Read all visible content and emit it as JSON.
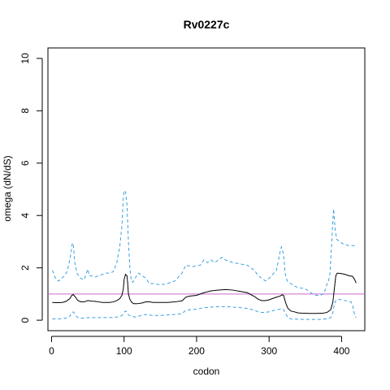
{
  "chart_data": {
    "type": "line",
    "title": "Rv0227c",
    "xlabel": "codon",
    "ylabel": "omega (dN/dS)",
    "xlim": [
      -5,
      432
    ],
    "ylim": [
      -0.4,
      10.4
    ],
    "xticks": [
      0,
      100,
      200,
      300,
      400
    ],
    "yticks": [
      0,
      2,
      4,
      6,
      8,
      10
    ],
    "grid": false,
    "reference_line": {
      "y": 1,
      "color": "#cc66cc"
    },
    "series": [
      {
        "role": "estimate",
        "color": "#000000",
        "dash": "solid",
        "points": [
          [
            1,
            0.68
          ],
          [
            5,
            0.67
          ],
          [
            10,
            0.67
          ],
          [
            15,
            0.68
          ],
          [
            20,
            0.72
          ],
          [
            25,
            0.82
          ],
          [
            28,
            0.95
          ],
          [
            30,
            0.98
          ],
          [
            33,
            0.88
          ],
          [
            36,
            0.76
          ],
          [
            40,
            0.7
          ],
          [
            45,
            0.7
          ],
          [
            50,
            0.75
          ],
          [
            55,
            0.73
          ],
          [
            60,
            0.72
          ],
          [
            65,
            0.7
          ],
          [
            70,
            0.68
          ],
          [
            75,
            0.68
          ],
          [
            80,
            0.68
          ],
          [
            85,
            0.7
          ],
          [
            90,
            0.75
          ],
          [
            94,
            0.82
          ],
          [
            97,
            0.95
          ],
          [
            99,
            1.2
          ],
          [
            100,
            1.55
          ],
          [
            102,
            1.75
          ],
          [
            104,
            1.7
          ],
          [
            105,
            1.4
          ],
          [
            106,
            1.0
          ],
          [
            108,
            0.8
          ],
          [
            110,
            0.7
          ],
          [
            113,
            0.63
          ],
          [
            118,
            0.63
          ],
          [
            125,
            0.66
          ],
          [
            130,
            0.7
          ],
          [
            135,
            0.7
          ],
          [
            140,
            0.68
          ],
          [
            150,
            0.68
          ],
          [
            160,
            0.68
          ],
          [
            170,
            0.7
          ],
          [
            180,
            0.74
          ],
          [
            185,
            0.88
          ],
          [
            190,
            0.92
          ],
          [
            200,
            0.95
          ],
          [
            210,
            1.05
          ],
          [
            220,
            1.12
          ],
          [
            230,
            1.15
          ],
          [
            240,
            1.17
          ],
          [
            250,
            1.15
          ],
          [
            260,
            1.1
          ],
          [
            270,
            1.05
          ],
          [
            280,
            0.9
          ],
          [
            285,
            0.8
          ],
          [
            290,
            0.75
          ],
          [
            295,
            0.75
          ],
          [
            300,
            0.78
          ],
          [
            305,
            0.83
          ],
          [
            310,
            0.88
          ],
          [
            315,
            0.92
          ],
          [
            318,
            0.97
          ],
          [
            320,
            0.95
          ],
          [
            323,
            0.65
          ],
          [
            326,
            0.45
          ],
          [
            330,
            0.35
          ],
          [
            335,
            0.32
          ],
          [
            340,
            0.28
          ],
          [
            345,
            0.27
          ],
          [
            355,
            0.26
          ],
          [
            365,
            0.26
          ],
          [
            375,
            0.27
          ],
          [
            380,
            0.3
          ],
          [
            385,
            0.4
          ],
          [
            388,
            0.7
          ],
          [
            390,
            1.2
          ],
          [
            392,
            1.7
          ],
          [
            394,
            1.8
          ],
          [
            400,
            1.78
          ],
          [
            405,
            1.75
          ],
          [
            410,
            1.7
          ],
          [
            415,
            1.68
          ],
          [
            418,
            1.55
          ],
          [
            420,
            1.42
          ]
        ]
      },
      {
        "role": "upper-bound",
        "color": "#3aa0e0",
        "dash": "dashed",
        "points": [
          [
            1,
            1.9
          ],
          [
            3,
            1.8
          ],
          [
            6,
            1.55
          ],
          [
            10,
            1.5
          ],
          [
            14,
            1.6
          ],
          [
            18,
            1.7
          ],
          [
            22,
            1.9
          ],
          [
            25,
            2.3
          ],
          [
            27,
            2.6
          ],
          [
            28,
            2.85
          ],
          [
            29,
            2.95
          ],
          [
            30,
            2.9
          ],
          [
            32,
            2.2
          ],
          [
            35,
            1.8
          ],
          [
            40,
            1.6
          ],
          [
            45,
            1.55
          ],
          [
            48,
            1.8
          ],
          [
            50,
            1.95
          ],
          [
            52,
            1.7
          ],
          [
            55,
            1.7
          ],
          [
            60,
            1.65
          ],
          [
            65,
            1.7
          ],
          [
            70,
            1.75
          ],
          [
            75,
            1.8
          ],
          [
            80,
            1.8
          ],
          [
            85,
            1.85
          ],
          [
            90,
            2.2
          ],
          [
            94,
            2.8
          ],
          [
            97,
            3.6
          ],
          [
            99,
            4.7
          ],
          [
            100,
            4.95
          ],
          [
            102,
            4.9
          ],
          [
            104,
            4.4
          ],
          [
            106,
            3.0
          ],
          [
            108,
            2.0
          ],
          [
            110,
            1.5
          ],
          [
            112,
            1.45
          ],
          [
            115,
            1.6
          ],
          [
            120,
            1.8
          ],
          [
            125,
            1.7
          ],
          [
            130,
            1.6
          ],
          [
            135,
            1.4
          ],
          [
            140,
            1.4
          ],
          [
            150,
            1.35
          ],
          [
            160,
            1.4
          ],
          [
            170,
            1.5
          ],
          [
            180,
            1.8
          ],
          [
            185,
            2.1
          ],
          [
            195,
            2.05
          ],
          [
            205,
            2.1
          ],
          [
            210,
            2.3
          ],
          [
            215,
            2.2
          ],
          [
            220,
            2.3
          ],
          [
            225,
            2.2
          ],
          [
            230,
            2.3
          ],
          [
            235,
            2.4
          ],
          [
            240,
            2.3
          ],
          [
            250,
            2.2
          ],
          [
            260,
            2.15
          ],
          [
            270,
            2.1
          ],
          [
            280,
            1.9
          ],
          [
            285,
            1.7
          ],
          [
            290,
            1.6
          ],
          [
            295,
            1.5
          ],
          [
            300,
            1.6
          ],
          [
            305,
            1.75
          ],
          [
            310,
            1.9
          ],
          [
            313,
            2.3
          ],
          [
            315,
            2.6
          ],
          [
            317,
            2.8
          ],
          [
            320,
            2.5
          ],
          [
            322,
            1.8
          ],
          [
            325,
            1.5
          ],
          [
            330,
            1.4
          ],
          [
            335,
            1.3
          ],
          [
            340,
            1.25
          ],
          [
            350,
            1.2
          ],
          [
            355,
            1.1
          ],
          [
            360,
            1.0
          ],
          [
            365,
            0.95
          ],
          [
            370,
            0.95
          ],
          [
            375,
            1.0
          ],
          [
            378,
            1.2
          ],
          [
            380,
            1.4
          ],
          [
            382,
            1.5
          ],
          [
            384,
            1.8
          ],
          [
            386,
            2.8
          ],
          [
            388,
            3.8
          ],
          [
            389,
            4.25
          ],
          [
            391,
            3.5
          ],
          [
            393,
            3.1
          ],
          [
            397,
            3.0
          ],
          [
            400,
            2.95
          ],
          [
            405,
            2.88
          ],
          [
            410,
            2.85
          ],
          [
            415,
            2.85
          ],
          [
            420,
            2.85
          ]
        ]
      },
      {
        "role": "lower-bound",
        "color": "#3aa0e0",
        "dash": "dashed",
        "points": [
          [
            1,
            0.05
          ],
          [
            5,
            0.05
          ],
          [
            10,
            0.05
          ],
          [
            15,
            0.06
          ],
          [
            20,
            0.08
          ],
          [
            25,
            0.15
          ],
          [
            28,
            0.28
          ],
          [
            30,
            0.32
          ],
          [
            33,
            0.2
          ],
          [
            36,
            0.1
          ],
          [
            40,
            0.08
          ],
          [
            45,
            0.08
          ],
          [
            50,
            0.1
          ],
          [
            55,
            0.1
          ],
          [
            60,
            0.1
          ],
          [
            70,
            0.1
          ],
          [
            80,
            0.1
          ],
          [
            90,
            0.12
          ],
          [
            95,
            0.15
          ],
          [
            98,
            0.2
          ],
          [
            100,
            0.3
          ],
          [
            102,
            0.35
          ],
          [
            104,
            0.3
          ],
          [
            106,
            0.2
          ],
          [
            110,
            0.15
          ],
          [
            115,
            0.12
          ],
          [
            120,
            0.15
          ],
          [
            125,
            0.2
          ],
          [
            130,
            0.22
          ],
          [
            135,
            0.2
          ],
          [
            140,
            0.18
          ],
          [
            150,
            0.18
          ],
          [
            160,
            0.2
          ],
          [
            170,
            0.22
          ],
          [
            180,
            0.25
          ],
          [
            185,
            0.38
          ],
          [
            190,
            0.4
          ],
          [
            200,
            0.42
          ],
          [
            210,
            0.48
          ],
          [
            220,
            0.5
          ],
          [
            230,
            0.52
          ],
          [
            240,
            0.52
          ],
          [
            250,
            0.5
          ],
          [
            260,
            0.48
          ],
          [
            270,
            0.45
          ],
          [
            280,
            0.38
          ],
          [
            285,
            0.32
          ],
          [
            290,
            0.3
          ],
          [
            295,
            0.3
          ],
          [
            300,
            0.32
          ],
          [
            305,
            0.36
          ],
          [
            310,
            0.4
          ],
          [
            315,
            0.42
          ],
          [
            318,
            0.44
          ],
          [
            320,
            0.4
          ],
          [
            323,
            0.25
          ],
          [
            326,
            0.1
          ],
          [
            330,
            0.05
          ],
          [
            340,
            0.04
          ],
          [
            350,
            0.03
          ],
          [
            360,
            0.03
          ],
          [
            370,
            0.03
          ],
          [
            380,
            0.05
          ],
          [
            385,
            0.1
          ],
          [
            388,
            0.3
          ],
          [
            390,
            0.6
          ],
          [
            392,
            0.75
          ],
          [
            395,
            0.8
          ],
          [
            400,
            0.78
          ],
          [
            405,
            0.75
          ],
          [
            410,
            0.72
          ],
          [
            413,
            0.7
          ],
          [
            415,
            0.6
          ],
          [
            417,
            0.3
          ],
          [
            420,
            0.1
          ]
        ]
      }
    ]
  }
}
